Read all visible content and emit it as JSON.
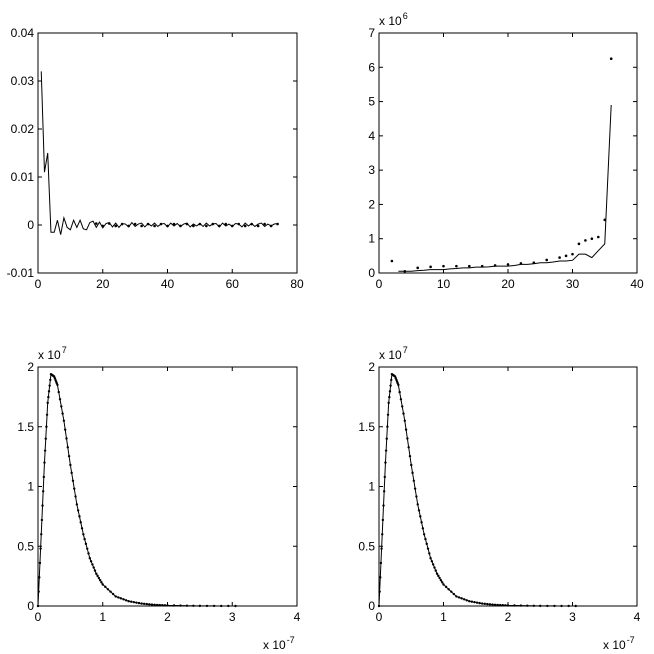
{
  "chart_data": [
    {
      "type": "line",
      "title": "",
      "xlabel": "",
      "ylabel": "",
      "xlim": [
        0,
        80
      ],
      "ylim": [
        -0.01,
        0.04
      ],
      "xticks": [
        0,
        20,
        40,
        60,
        80
      ],
      "yticks": [
        -0.01,
        0,
        0.01,
        0.02,
        0.03,
        0.04
      ],
      "xtick_labels": [
        "0",
        "20",
        "40",
        "60",
        "80"
      ],
      "ytick_labels": [
        "-0.01",
        "0",
        "0.01",
        "0.02",
        "0.03",
        "0.04"
      ],
      "grid": false,
      "series": [
        {
          "style": "line",
          "x": [
            1,
            2,
            3,
            4,
            5,
            6,
            7,
            8,
            9,
            10,
            11,
            12,
            13,
            14,
            15,
            16,
            17,
            18,
            19,
            20,
            21,
            22,
            23,
            24,
            25,
            26,
            27,
            28,
            29,
            30,
            31,
            32,
            33,
            34,
            35,
            36,
            37,
            38,
            39,
            40,
            41,
            42,
            43,
            44,
            45,
            46,
            47,
            48,
            49,
            50,
            51,
            52,
            53,
            54,
            55,
            56,
            57,
            58,
            59,
            60,
            61,
            62,
            63,
            64,
            65,
            66,
            67,
            68,
            69,
            70,
            71,
            72,
            73,
            74
          ],
          "y": [
            0.032,
            0.011,
            0.015,
            -0.0015,
            -0.0015,
            0.001,
            -0.002,
            0.0015,
            -0.0005,
            -0.001,
            0.001,
            -0.0005,
            0.001,
            -0.0008,
            -0.001,
            0.0005,
            0.0008,
            -0.0005,
            0.0006,
            -0.0006,
            0.0003,
            0.0005,
            -0.0004,
            0.0004,
            -0.0005,
            0.0003,
            0.0002,
            -0.0004,
            0.0005,
            -0.0003,
            0.0002,
            0.0004,
            -0.0004,
            0.0003,
            -0.0002,
            0.0004,
            -0.0003,
            0.0002,
            0.0003,
            -0.0004,
            0.0004,
            -0.0002,
            0.0003,
            -0.0003,
            0.0002,
            0.0004,
            -0.0004,
            0.0002,
            -0.0002,
            0.0003,
            -0.0003,
            0.0004,
            -0.0002,
            0.0002,
            0.0003,
            -0.0004,
            0.0004,
            -0.0002,
            0.0002,
            -0.0003,
            0.0003,
            0.0002,
            -0.0004,
            0.0004,
            -0.0002,
            0.0003,
            -0.0003,
            0.0002,
            0.0004,
            -0.0003,
            0.0002,
            -0.0002,
            0.0002,
            0.0003
          ]
        },
        {
          "style": "dots",
          "x": [
            18,
            20,
            22,
            24,
            26,
            28,
            30,
            32,
            34,
            36,
            38,
            40,
            42,
            44,
            46,
            48,
            50,
            52,
            54,
            56,
            58,
            60,
            62,
            64,
            66,
            68,
            70,
            72,
            74
          ],
          "y": [
            0.0003,
            -0.0002,
            0.0003,
            -0.0002,
            0.0002,
            -0.0002,
            0.0002,
            -0.0002,
            0.0002,
            -0.0002,
            0.0002,
            -0.0002,
            0.0002,
            -0.0002,
            0.0002,
            -0.0002,
            0.0002,
            -0.0002,
            0.0002,
            -0.0002,
            0.0002,
            -0.0002,
            0.0002,
            -0.0002,
            0.0002,
            -0.0002,
            0.0002,
            -0.0002,
            0.0002
          ]
        }
      ]
    },
    {
      "type": "line",
      "title": "",
      "xlabel": "",
      "ylabel": "",
      "xlim": [
        0,
        40
      ],
      "ylim": [
        0,
        7
      ],
      "xticks": [
        0,
        10,
        20,
        30,
        40
      ],
      "yticks": [
        0,
        1,
        2,
        3,
        4,
        5,
        6,
        7
      ],
      "xtick_labels": [
        "0",
        "10",
        "20",
        "30",
        "40"
      ],
      "ytick_labels": [
        "0",
        "1",
        "2",
        "3",
        "4",
        "5",
        "6",
        "7"
      ],
      "y_exponent_base": "x 10",
      "y_exponent_power": "6",
      "grid": false,
      "series": [
        {
          "style": "line",
          "x": [
            3,
            4,
            5,
            6,
            7,
            8,
            9,
            10,
            11,
            12,
            13,
            14,
            15,
            16,
            17,
            18,
            19,
            20,
            21,
            22,
            23,
            24,
            25,
            26,
            27,
            28,
            29,
            30,
            31,
            32,
            33,
            34,
            35,
            36
          ],
          "y": [
            0.05,
            0.05,
            0.05,
            0.07,
            0.08,
            0.1,
            0.1,
            0.1,
            0.12,
            0.13,
            0.15,
            0.15,
            0.17,
            0.17,
            0.18,
            0.2,
            0.2,
            0.2,
            0.22,
            0.25,
            0.25,
            0.27,
            0.3,
            0.3,
            0.32,
            0.35,
            0.35,
            0.37,
            0.55,
            0.55,
            0.45,
            0.65,
            0.85,
            4.9
          ]
        },
        {
          "style": "dots",
          "x": [
            2,
            4,
            6,
            8,
            10,
            12,
            14,
            16,
            18,
            20,
            22,
            24,
            26,
            28,
            29,
            30,
            31,
            32,
            33,
            34,
            35,
            36
          ],
          "y": [
            0.35,
            0.05,
            0.15,
            0.18,
            0.2,
            0.2,
            0.2,
            0.2,
            0.22,
            0.25,
            0.28,
            0.3,
            0.38,
            0.45,
            0.5,
            0.55,
            0.85,
            0.95,
            1.0,
            1.05,
            1.55,
            6.25
          ]
        }
      ]
    },
    {
      "type": "line",
      "title": "",
      "xlabel": "",
      "ylabel": "",
      "xlim": [
        0,
        4
      ],
      "ylim": [
        0,
        2
      ],
      "xticks": [
        0,
        1,
        2,
        3,
        4
      ],
      "yticks": [
        0,
        0.5,
        1,
        1.5,
        2
      ],
      "xtick_labels": [
        "0",
        "1",
        "2",
        "3",
        "4"
      ],
      "ytick_labels": [
        "0",
        "0.5",
        "1",
        "1.5",
        "2"
      ],
      "y_exponent_base": "x 10",
      "y_exponent_power": "7",
      "x_exponent_base": "x 10",
      "x_exponent_power": "-7",
      "grid": false,
      "curve_model": {
        "description": "gamma-like peak",
        "peak_x": 0.21,
        "peak_y": 1.95,
        "end_x": 3.05
      },
      "series": [
        {
          "style": "line+dots",
          "x": [
            0,
            0.05,
            0.1,
            0.15,
            0.2,
            0.25,
            0.3,
            0.4,
            0.5,
            0.6,
            0.7,
            0.8,
            0.9,
            1.0,
            1.2,
            1.4,
            1.6,
            1.8,
            2.0,
            2.5,
            3.05
          ],
          "y": [
            0,
            0.6,
            1.2,
            1.7,
            1.94,
            1.92,
            1.85,
            1.55,
            1.18,
            0.85,
            0.6,
            0.4,
            0.27,
            0.18,
            0.08,
            0.04,
            0.02,
            0.01,
            0.005,
            0.001,
            0
          ]
        }
      ]
    },
    {
      "type": "line",
      "title": "",
      "xlabel": "",
      "ylabel": "",
      "xlim": [
        0,
        4
      ],
      "ylim": [
        0,
        2
      ],
      "xticks": [
        0,
        1,
        2,
        3,
        4
      ],
      "yticks": [
        0,
        0.5,
        1,
        1.5,
        2
      ],
      "xtick_labels": [
        "0",
        "1",
        "2",
        "3",
        "4"
      ],
      "ytick_labels": [
        "0",
        "0.5",
        "1",
        "1.5",
        "2"
      ],
      "y_exponent_base": "x 10",
      "y_exponent_power": "7",
      "x_exponent_base": "x 10",
      "x_exponent_power": "-7",
      "grid": false,
      "series": [
        {
          "style": "line+dots",
          "x": [
            0,
            0.05,
            0.1,
            0.15,
            0.2,
            0.25,
            0.3,
            0.4,
            0.5,
            0.6,
            0.7,
            0.8,
            0.9,
            1.0,
            1.2,
            1.4,
            1.6,
            1.8,
            2.0,
            2.5,
            3.05
          ],
          "y": [
            0,
            0.6,
            1.2,
            1.7,
            1.94,
            1.92,
            1.85,
            1.55,
            1.18,
            0.85,
            0.6,
            0.4,
            0.27,
            0.18,
            0.08,
            0.04,
            0.02,
            0.01,
            0.005,
            0.001,
            0
          ]
        }
      ]
    }
  ]
}
